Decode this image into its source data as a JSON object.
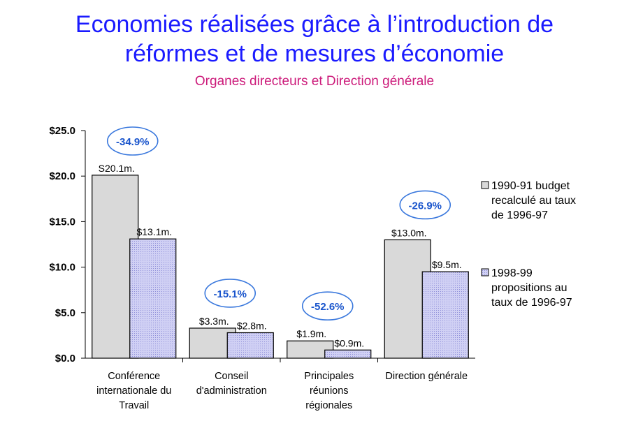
{
  "page": {
    "title_line1": "Economies réalisées grâce à l’introduction de",
    "title_line2": "réformes et de mesures d’économie",
    "subtitle": "Organes directeurs et Direction générale"
  },
  "chart_data": {
    "type": "bar",
    "title": "Economies réalisées grâce à l’introduction de réformes et de mesures d’économie",
    "subtitle": "Organes directeurs et Direction générale",
    "xlabel": "",
    "ylabel": "",
    "ylim": [
      0,
      25
    ],
    "yticks": [
      0,
      5,
      10,
      15,
      20,
      25
    ],
    "ytick_labels": [
      "$0.0",
      "$5.0",
      "$10.0",
      "$15.0",
      "$20.0",
      "$25.0"
    ],
    "grid": false,
    "legend_position": "right",
    "categories": [
      [
        "Conférence",
        "internationale du",
        "Travail"
      ],
      [
        "Conseil",
        "d'administration"
      ],
      [
        "Principales",
        "réunions",
        "régionales"
      ],
      [
        "Direction générale"
      ]
    ],
    "series": [
      {
        "name": [
          "1990-91 budget",
          "recalculé au taux",
          "de 1996-97"
        ],
        "color": "#d9d9d9",
        "values": [
          20.1,
          3.3,
          1.9,
          13.0
        ],
        "labels": [
          "S20.1m.",
          "$3.3m.",
          "$1.9m.",
          "$13.0m."
        ]
      },
      {
        "name": [
          "1998-99",
          "propositions au",
          "taux de 1996-97"
        ],
        "color": "#c8c8f0",
        "values": [
          13.1,
          2.8,
          0.9,
          9.5
        ],
        "labels": [
          "$13.1m.",
          "$2.8m.",
          "$0.9m.",
          "$9.5m."
        ]
      }
    ],
    "annotations": [
      "-34.9%",
      "-15.1%",
      "-52.6%",
      "-26.9%"
    ]
  }
}
